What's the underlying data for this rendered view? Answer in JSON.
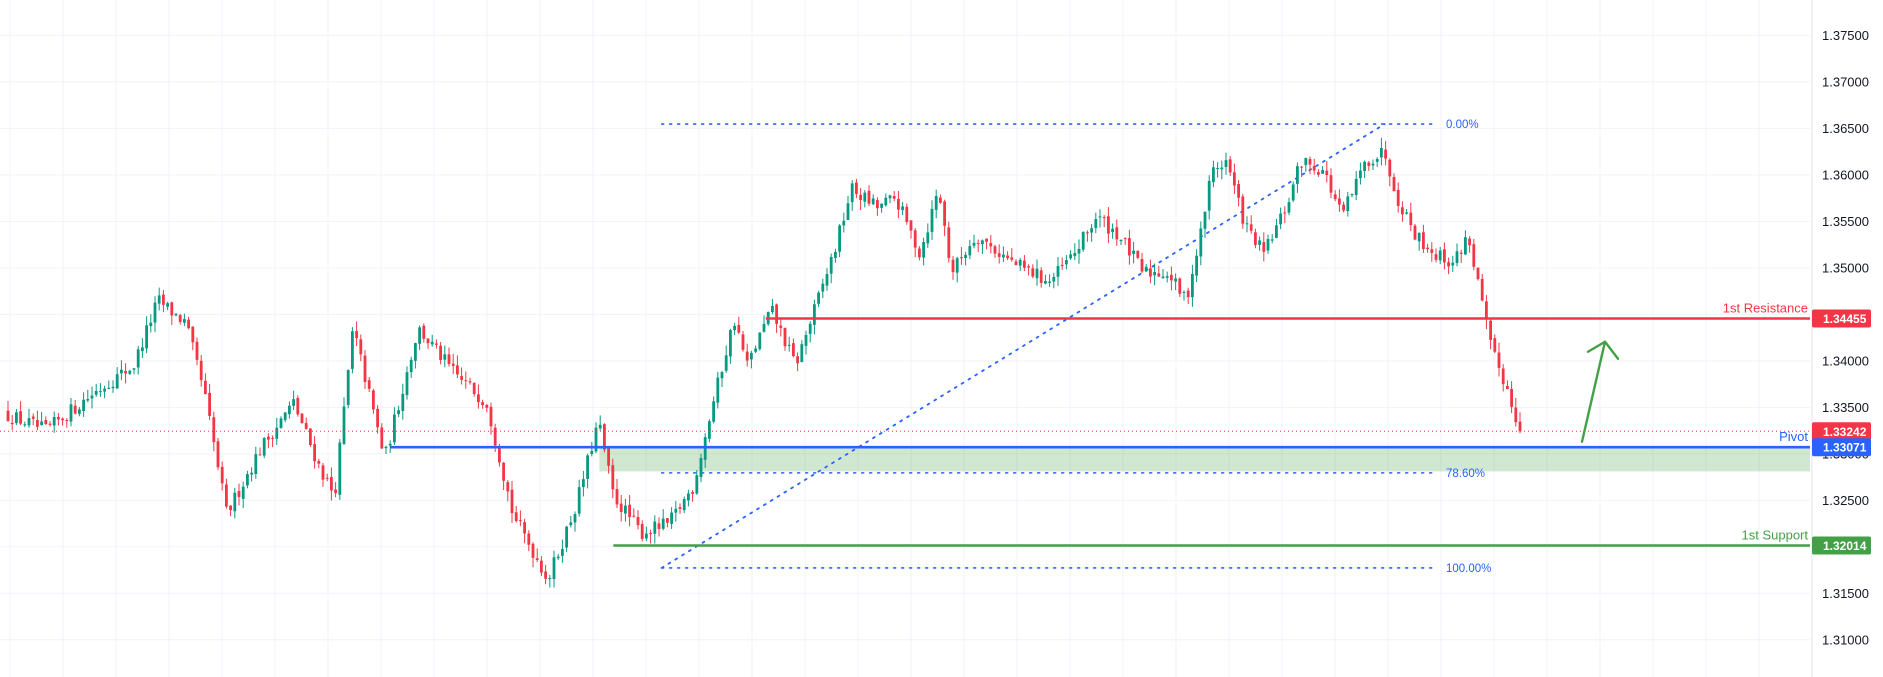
{
  "chart_data": {
    "type": "candlestick",
    "y_axis": {
      "ylim": [
        1.306,
        1.3788
      ],
      "ticks": [
        "1.31000",
        "1.31500",
        "1.32000",
        "1.32500",
        "1.33000",
        "1.33500",
        "1.34000",
        "1.34500",
        "1.35000",
        "1.35500",
        "1.36000",
        "1.36500",
        "1.37000",
        "1.37500"
      ],
      "position": "right"
    },
    "grid": true,
    "last_price": 1.33242,
    "last_price_label": "1.33242",
    "levels": [
      {
        "name": "1st Resistance",
        "value": 1.34455,
        "value_label": "1.34455",
        "color": "#f23645",
        "x_start_frac": 0.412
      },
      {
        "name": "Pivot",
        "value": 1.33071,
        "value_label": "1.33071",
        "color": "#2962ff",
        "x_start_frac": 0.21
      },
      {
        "name": "1st Support",
        "value": 1.32014,
        "value_label": "1.32014",
        "color": "#43a047",
        "x_start_frac": 0.33
      }
    ],
    "zone": {
      "from": 1.32811,
      "to": 1.33071,
      "color": "#43a047"
    },
    "fibonacci": {
      "high": 1.36546,
      "low": 1.31773,
      "color": "#2962ff",
      "x_start_frac": 0.356,
      "x_end_frac": 0.745,
      "levels": [
        {
          "label": "0.00%",
          "value": 1.36546
        },
        {
          "label": "78.60%",
          "value": 1.32795
        },
        {
          "label": "100.00%",
          "value": 1.31773
        }
      ]
    },
    "trendline": {
      "from": {
        "x_frac": 0.356,
        "y": 1.31773
      },
      "to": {
        "x_frac": 0.745,
        "y": 1.36546
      },
      "style": "dotted"
    },
    "projection_arrow": {
      "from_y": 1.3313,
      "to_y": 1.34205,
      "color": "#43a047",
      "direction": "up"
    },
    "anchors": [
      [
        0.0,
        1.3345
      ],
      [
        0.025,
        1.3325
      ],
      [
        0.05,
        1.3365
      ],
      [
        0.072,
        1.3395
      ],
      [
        0.085,
        1.3465
      ],
      [
        0.1,
        1.344
      ],
      [
        0.11,
        1.3365
      ],
      [
        0.122,
        1.3235
      ],
      [
        0.14,
        1.3305
      ],
      [
        0.158,
        1.3355
      ],
      [
        0.172,
        1.3285
      ],
      [
        0.18,
        1.3255
      ],
      [
        0.19,
        1.3435
      ],
      [
        0.207,
        1.3295
      ],
      [
        0.225,
        1.3435
      ],
      [
        0.245,
        1.3385
      ],
      [
        0.262,
        1.3355
      ],
      [
        0.276,
        1.3235
      ],
      [
        0.295,
        1.3165
      ],
      [
        0.31,
        1.3245
      ],
      [
        0.322,
        1.3335
      ],
      [
        0.33,
        1.3255
      ],
      [
        0.345,
        1.3215
      ],
      [
        0.36,
        1.3225
      ],
      [
        0.373,
        1.3265
      ],
      [
        0.385,
        1.3365
      ],
      [
        0.395,
        1.3445
      ],
      [
        0.402,
        1.3395
      ],
      [
        0.415,
        1.3455
      ],
      [
        0.428,
        1.3395
      ],
      [
        0.44,
        1.3465
      ],
      [
        0.45,
        1.3525
      ],
      [
        0.458,
        1.3585
      ],
      [
        0.472,
        1.3565
      ],
      [
        0.482,
        1.3575
      ],
      [
        0.495,
        1.3515
      ],
      [
        0.505,
        1.3585
      ],
      [
        0.512,
        1.3495
      ],
      [
        0.525,
        1.3535
      ],
      [
        0.545,
        1.3505
      ],
      [
        0.565,
        1.3485
      ],
      [
        0.578,
        1.3515
      ],
      [
        0.59,
        1.3555
      ],
      [
        0.602,
        1.3535
      ],
      [
        0.615,
        1.3495
      ],
      [
        0.628,
        1.3495
      ],
      [
        0.638,
        1.3465
      ],
      [
        0.645,
        1.3525
      ],
      [
        0.652,
        1.3605
      ],
      [
        0.66,
        1.3615
      ],
      [
        0.67,
        1.3545
      ],
      [
        0.68,
        1.3515
      ],
      [
        0.692,
        1.3565
      ],
      [
        0.7,
        1.3615
      ],
      [
        0.712,
        1.3605
      ],
      [
        0.722,
        1.3555
      ],
      [
        0.735,
        1.3615
      ],
      [
        0.745,
        1.3625
      ],
      [
        0.752,
        1.3575
      ],
      [
        0.762,
        1.3535
      ],
      [
        0.772,
        1.3515
      ],
      [
        0.782,
        1.3505
      ],
      [
        0.79,
        1.3535
      ],
      [
        0.795,
        1.3485
      ],
      [
        0.802,
        1.3415
      ],
      [
        0.81,
        1.3375
      ],
      [
        0.818,
        1.33242
      ]
    ]
  }
}
